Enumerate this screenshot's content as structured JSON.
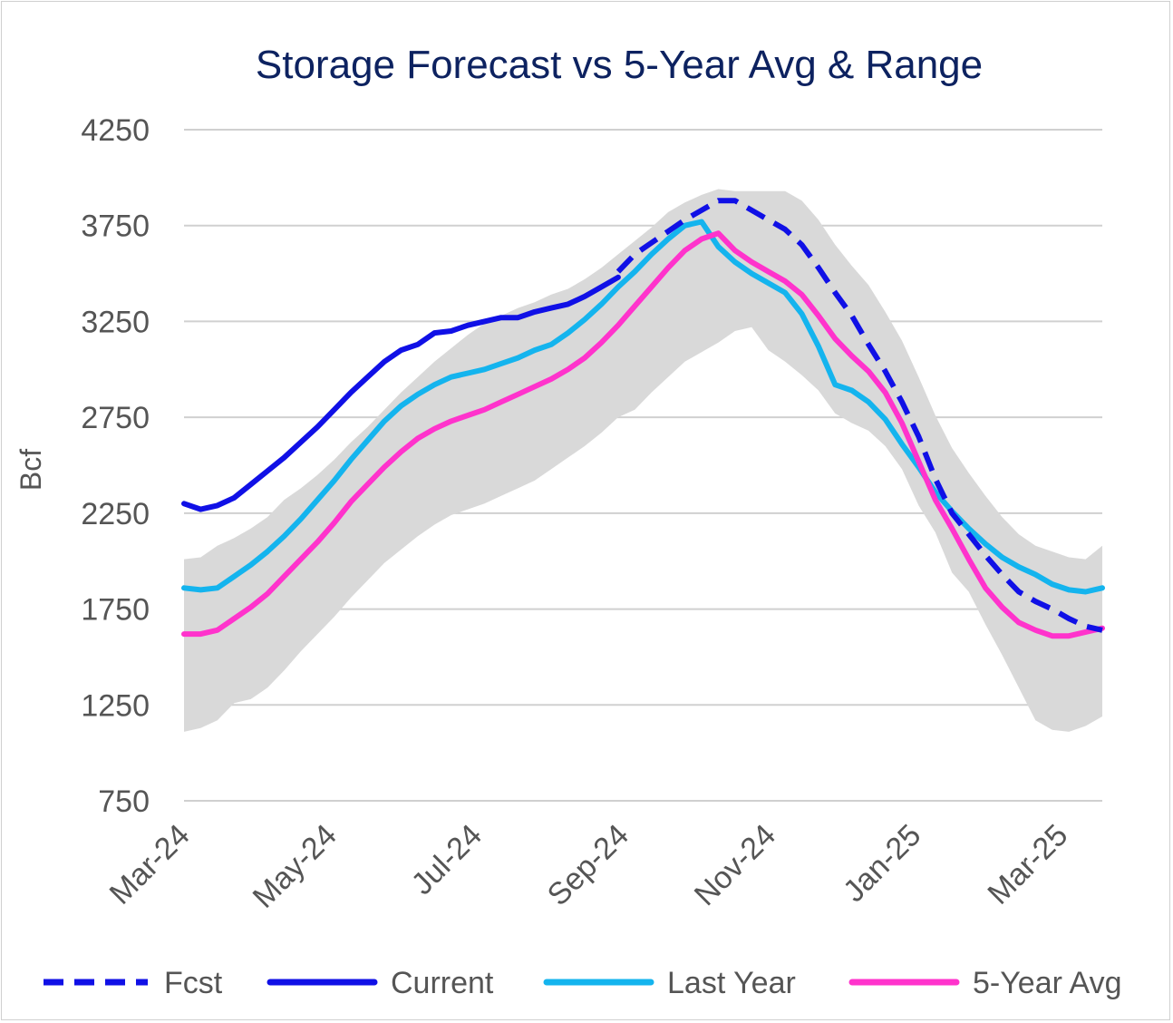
{
  "chart_data": {
    "type": "line",
    "title": "Storage Forecast vs 5-Year Avg & Range",
    "xlabel": "",
    "ylabel": "Bcf",
    "ylim": [
      750,
      4250
    ],
    "yticks": [
      4250,
      3750,
      3250,
      2750,
      2250,
      1750,
      1250,
      750
    ],
    "x_tick_labels": [
      {
        "label": "Mar-24",
        "week": 0
      },
      {
        "label": "May-24",
        "week": 8.8
      },
      {
        "label": "Jul-24",
        "week": 17.5
      },
      {
        "label": "Sep-24",
        "week": 26.3
      },
      {
        "label": "Nov-24",
        "week": 35.1
      },
      {
        "label": "Jan-25",
        "week": 43.8
      },
      {
        "label": "Mar-25",
        "week": 52.6
      }
    ],
    "x_unit": "weeks since Mar-24",
    "grid": true,
    "legend_position": "bottom",
    "range_band": {
      "name": "5-Year Range",
      "color": "#d9d9d9",
      "min": [
        [
          0,
          1110
        ],
        [
          1,
          1130
        ],
        [
          2,
          1170
        ],
        [
          3,
          1260
        ],
        [
          4,
          1280
        ],
        [
          5,
          1340
        ],
        [
          6,
          1430
        ],
        [
          7,
          1530
        ],
        [
          8,
          1620
        ],
        [
          9,
          1710
        ],
        [
          10,
          1810
        ],
        [
          11,
          1900
        ],
        [
          12,
          1990
        ],
        [
          13,
          2060
        ],
        [
          14,
          2130
        ],
        [
          15,
          2190
        ],
        [
          16,
          2240
        ],
        [
          17,
          2270
        ],
        [
          18,
          2300
        ],
        [
          19,
          2340
        ],
        [
          20,
          2380
        ],
        [
          21,
          2420
        ],
        [
          22,
          2480
        ],
        [
          23,
          2540
        ],
        [
          24,
          2600
        ],
        [
          25,
          2670
        ],
        [
          26,
          2750
        ],
        [
          27,
          2790
        ],
        [
          28,
          2880
        ],
        [
          29,
          2960
        ],
        [
          30,
          3040
        ],
        [
          31,
          3090
        ],
        [
          32,
          3140
        ],
        [
          33,
          3200
        ],
        [
          34,
          3220
        ],
        [
          35,
          3100
        ],
        [
          36,
          3040
        ],
        [
          37,
          2970
        ],
        [
          38,
          2890
        ],
        [
          39,
          2770
        ],
        [
          40,
          2720
        ],
        [
          41,
          2680
        ],
        [
          42,
          2600
        ],
        [
          43,
          2480
        ],
        [
          44,
          2290
        ],
        [
          45,
          2150
        ],
        [
          46,
          1940
        ],
        [
          47,
          1840
        ],
        [
          48,
          1670
        ],
        [
          49,
          1510
        ],
        [
          50,
          1340
        ],
        [
          51,
          1170
        ],
        [
          52,
          1120
        ],
        [
          53,
          1110
        ],
        [
          54,
          1140
        ],
        [
          55,
          1190
        ]
      ],
      "max": [
        [
          0,
          2010
        ],
        [
          1,
          2020
        ],
        [
          2,
          2080
        ],
        [
          3,
          2120
        ],
        [
          4,
          2170
        ],
        [
          5,
          2230
        ],
        [
          6,
          2320
        ],
        [
          7,
          2380
        ],
        [
          8,
          2450
        ],
        [
          9,
          2530
        ],
        [
          10,
          2620
        ],
        [
          11,
          2700
        ],
        [
          12,
          2790
        ],
        [
          13,
          2880
        ],
        [
          14,
          2960
        ],
        [
          15,
          3040
        ],
        [
          16,
          3110
        ],
        [
          17,
          3180
        ],
        [
          18,
          3240
        ],
        [
          19,
          3280
        ],
        [
          20,
          3320
        ],
        [
          21,
          3350
        ],
        [
          22,
          3390
        ],
        [
          23,
          3420
        ],
        [
          24,
          3470
        ],
        [
          25,
          3530
        ],
        [
          26,
          3600
        ],
        [
          27,
          3670
        ],
        [
          28,
          3740
        ],
        [
          29,
          3820
        ],
        [
          30,
          3870
        ],
        [
          31,
          3910
        ],
        [
          32,
          3940
        ],
        [
          33,
          3930
        ],
        [
          34,
          3930
        ],
        [
          35,
          3930
        ],
        [
          36,
          3930
        ],
        [
          37,
          3880
        ],
        [
          38,
          3780
        ],
        [
          39,
          3650
        ],
        [
          40,
          3540
        ],
        [
          41,
          3440
        ],
        [
          42,
          3300
        ],
        [
          43,
          3150
        ],
        [
          44,
          2960
        ],
        [
          45,
          2760
        ],
        [
          46,
          2590
        ],
        [
          47,
          2460
        ],
        [
          48,
          2340
        ],
        [
          49,
          2230
        ],
        [
          50,
          2140
        ],
        [
          51,
          2080
        ],
        [
          52,
          2050
        ],
        [
          53,
          2020
        ],
        [
          54,
          2010
        ],
        [
          55,
          2080
        ]
      ]
    },
    "series": [
      {
        "name": "Fcst",
        "color": "#1010e6",
        "dashed": true,
        "points": [
          [
            26,
            3510
          ],
          [
            27,
            3600
          ],
          [
            28,
            3660
          ],
          [
            29,
            3720
          ],
          [
            30,
            3780
          ],
          [
            31,
            3830
          ],
          [
            32,
            3880
          ],
          [
            33,
            3880
          ],
          [
            34,
            3830
          ],
          [
            35,
            3780
          ],
          [
            36,
            3730
          ],
          [
            37,
            3650
          ],
          [
            38,
            3530
          ],
          [
            39,
            3400
          ],
          [
            40,
            3280
          ],
          [
            41,
            3130
          ],
          [
            42,
            2990
          ],
          [
            43,
            2830
          ],
          [
            44,
            2650
          ],
          [
            45,
            2430
          ],
          [
            46,
            2250
          ],
          [
            47,
            2140
          ],
          [
            48,
            2030
          ],
          [
            49,
            1930
          ],
          [
            50,
            1840
          ],
          [
            51,
            1790
          ],
          [
            52,
            1750
          ],
          [
            53,
            1700
          ],
          [
            54,
            1660
          ],
          [
            55,
            1640
          ]
        ]
      },
      {
        "name": "Current",
        "color": "#1010e6",
        "dashed": false,
        "points": [
          [
            0,
            2300
          ],
          [
            1,
            2270
          ],
          [
            2,
            2290
          ],
          [
            3,
            2330
          ],
          [
            4,
            2400
          ],
          [
            5,
            2470
          ],
          [
            6,
            2540
          ],
          [
            7,
            2620
          ],
          [
            8,
            2700
          ],
          [
            9,
            2790
          ],
          [
            10,
            2880
          ],
          [
            11,
            2960
          ],
          [
            12,
            3040
          ],
          [
            13,
            3100
          ],
          [
            14,
            3130
          ],
          [
            15,
            3190
          ],
          [
            16,
            3200
          ],
          [
            17,
            3230
          ],
          [
            18,
            3250
          ],
          [
            19,
            3270
          ],
          [
            20,
            3270
          ],
          [
            21,
            3300
          ],
          [
            22,
            3320
          ],
          [
            23,
            3340
          ],
          [
            24,
            3380
          ],
          [
            25,
            3430
          ],
          [
            26,
            3480
          ]
        ]
      },
      {
        "name": "Last Year",
        "color": "#14b4ee",
        "dashed": false,
        "points": [
          [
            0,
            1860
          ],
          [
            1,
            1850
          ],
          [
            2,
            1860
          ],
          [
            3,
            1920
          ],
          [
            4,
            1980
          ],
          [
            5,
            2050
          ],
          [
            6,
            2130
          ],
          [
            7,
            2220
          ],
          [
            8,
            2320
          ],
          [
            9,
            2420
          ],
          [
            10,
            2530
          ],
          [
            11,
            2630
          ],
          [
            12,
            2730
          ],
          [
            13,
            2810
          ],
          [
            14,
            2870
          ],
          [
            15,
            2920
          ],
          [
            16,
            2960
          ],
          [
            17,
            2980
          ],
          [
            18,
            3000
          ],
          [
            19,
            3030
          ],
          [
            20,
            3060
          ],
          [
            21,
            3100
          ],
          [
            22,
            3130
          ],
          [
            23,
            3190
          ],
          [
            24,
            3260
          ],
          [
            25,
            3340
          ],
          [
            26,
            3430
          ],
          [
            27,
            3510
          ],
          [
            28,
            3600
          ],
          [
            29,
            3680
          ],
          [
            30,
            3750
          ],
          [
            31,
            3770
          ],
          [
            32,
            3640
          ],
          [
            33,
            3560
          ],
          [
            34,
            3500
          ],
          [
            35,
            3450
          ],
          [
            36,
            3400
          ],
          [
            37,
            3290
          ],
          [
            38,
            3120
          ],
          [
            39,
            2920
          ],
          [
            40,
            2890
          ],
          [
            41,
            2830
          ],
          [
            42,
            2740
          ],
          [
            43,
            2610
          ],
          [
            44,
            2490
          ],
          [
            45,
            2360
          ],
          [
            46,
            2260
          ],
          [
            47,
            2170
          ],
          [
            48,
            2090
          ],
          [
            49,
            2020
          ],
          [
            50,
            1970
          ],
          [
            51,
            1930
          ],
          [
            52,
            1880
          ],
          [
            53,
            1850
          ],
          [
            54,
            1840
          ],
          [
            55,
            1860
          ]
        ]
      },
      {
        "name": "5-Year Avg",
        "color": "#ff33cc",
        "dashed": false,
        "points": [
          [
            0,
            1620
          ],
          [
            1,
            1620
          ],
          [
            2,
            1640
          ],
          [
            3,
            1700
          ],
          [
            4,
            1760
          ],
          [
            5,
            1830
          ],
          [
            6,
            1920
          ],
          [
            7,
            2010
          ],
          [
            8,
            2100
          ],
          [
            9,
            2200
          ],
          [
            10,
            2310
          ],
          [
            11,
            2400
          ],
          [
            12,
            2490
          ],
          [
            13,
            2570
          ],
          [
            14,
            2640
          ],
          [
            15,
            2690
          ],
          [
            16,
            2730
          ],
          [
            17,
            2760
          ],
          [
            18,
            2790
          ],
          [
            19,
            2830
          ],
          [
            20,
            2870
          ],
          [
            21,
            2910
          ],
          [
            22,
            2950
          ],
          [
            23,
            3000
          ],
          [
            24,
            3060
          ],
          [
            25,
            3140
          ],
          [
            26,
            3230
          ],
          [
            27,
            3330
          ],
          [
            28,
            3430
          ],
          [
            29,
            3530
          ],
          [
            30,
            3620
          ],
          [
            31,
            3680
          ],
          [
            32,
            3710
          ],
          [
            33,
            3620
          ],
          [
            34,
            3560
          ],
          [
            35,
            3510
          ],
          [
            36,
            3460
          ],
          [
            37,
            3390
          ],
          [
            38,
            3280
          ],
          [
            39,
            3160
          ],
          [
            40,
            3070
          ],
          [
            41,
            2990
          ],
          [
            42,
            2880
          ],
          [
            43,
            2720
          ],
          [
            44,
            2520
          ],
          [
            45,
            2320
          ],
          [
            46,
            2170
          ],
          [
            47,
            2010
          ],
          [
            48,
            1860
          ],
          [
            49,
            1760
          ],
          [
            50,
            1680
          ],
          [
            51,
            1640
          ],
          [
            52,
            1610
          ],
          [
            53,
            1610
          ],
          [
            54,
            1630
          ],
          [
            55,
            1650
          ]
        ]
      }
    ],
    "legend": [
      {
        "name": "Fcst",
        "style": "dashed",
        "color": "#1010e6"
      },
      {
        "name": "Current",
        "style": "solid",
        "color": "#1010e6"
      },
      {
        "name": "Last Year",
        "style": "solid",
        "color": "#14b4ee"
      },
      {
        "name": "5-Year Avg",
        "style": "solid",
        "color": "#ff33cc"
      }
    ]
  }
}
